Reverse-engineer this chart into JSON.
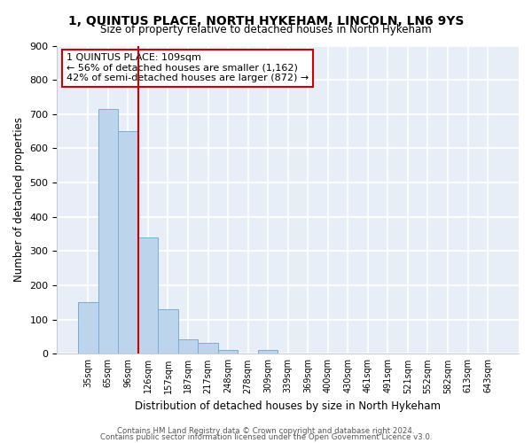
{
  "title": "1, QUINTUS PLACE, NORTH HYKEHAM, LINCOLN, LN6 9YS",
  "subtitle": "Size of property relative to detached houses in North Hykeham",
  "xlabel": "Distribution of detached houses by size in North Hykeham",
  "ylabel": "Number of detached properties",
  "categories": [
    "35sqm",
    "65sqm",
    "96sqm",
    "126sqm",
    "157sqm",
    "187sqm",
    "217sqm",
    "248sqm",
    "278sqm",
    "309sqm",
    "339sqm",
    "369sqm",
    "400sqm",
    "430sqm",
    "461sqm",
    "491sqm",
    "521sqm",
    "552sqm",
    "582sqm",
    "613sqm",
    "643sqm"
  ],
  "values": [
    150,
    715,
    650,
    340,
    130,
    43,
    32,
    12,
    0,
    10,
    0,
    0,
    0,
    0,
    0,
    0,
    0,
    0,
    0,
    0,
    0
  ],
  "bar_color": "#bdd4ed",
  "bar_edge_color": "#7aadd4",
  "background_color": "#e8eef8",
  "grid_color": "#ffffff",
  "red_line_x": 2.5,
  "annotation_line1": "1 QUINTUS PLACE: 109sqm",
  "annotation_line2": "← 56% of detached houses are smaller (1,162)",
  "annotation_line3": "42% of semi-detached houses are larger (872) →",
  "annotation_box_facecolor": "#ffffff",
  "annotation_box_edgecolor": "#cc0000",
  "footer1": "Contains HM Land Registry data © Crown copyright and database right 2024.",
  "footer2": "Contains public sector information licensed under the Open Government Licence v3.0.",
  "fig_facecolor": "#ffffff",
  "ylim": [
    0,
    900
  ],
  "yticks": [
    0,
    100,
    200,
    300,
    400,
    500,
    600,
    700,
    800,
    900
  ]
}
